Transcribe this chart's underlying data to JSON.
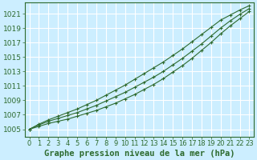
{
  "title": "",
  "xlabel": "Graphe pression niveau de la mer (hPa)",
  "ylabel": "",
  "bg_color": "#cceeff",
  "grid_color": "#ffffff",
  "line_color": "#2d6a2d",
  "marker": "+",
  "x_values": [
    0,
    1,
    2,
    3,
    4,
    5,
    6,
    7,
    8,
    9,
    10,
    11,
    12,
    13,
    14,
    15,
    16,
    17,
    18,
    19,
    20,
    21,
    22,
    23
  ],
  "y_main": [
    1005.0,
    1005.6,
    1006.1,
    1006.5,
    1006.9,
    1007.3,
    1007.8,
    1008.3,
    1008.9,
    1009.5,
    1010.1,
    1010.8,
    1011.5,
    1012.2,
    1013.0,
    1013.9,
    1014.8,
    1015.8,
    1016.8,
    1017.9,
    1019.0,
    1020.0,
    1020.9,
    1021.7
  ],
  "y_upper": [
    1005.0,
    1005.7,
    1006.3,
    1006.8,
    1007.3,
    1007.8,
    1008.4,
    1009.0,
    1009.7,
    1010.4,
    1011.1,
    1011.9,
    1012.7,
    1013.5,
    1014.3,
    1015.2,
    1016.1,
    1017.1,
    1018.1,
    1019.1,
    1020.1,
    1020.8,
    1021.5,
    1022.1
  ],
  "y_lower": [
    1005.0,
    1005.4,
    1005.8,
    1006.1,
    1006.4,
    1006.8,
    1007.2,
    1007.6,
    1008.1,
    1008.6,
    1009.2,
    1009.8,
    1010.5,
    1011.2,
    1012.0,
    1012.9,
    1013.8,
    1014.8,
    1015.9,
    1017.0,
    1018.2,
    1019.3,
    1020.3,
    1021.3
  ],
  "ylim": [
    1004.0,
    1022.5
  ],
  "yticks": [
    1005,
    1007,
    1009,
    1011,
    1013,
    1015,
    1017,
    1019,
    1021
  ],
  "xlim": [
    -0.5,
    23.5
  ],
  "xticks": [
    0,
    1,
    2,
    3,
    4,
    5,
    6,
    7,
    8,
    9,
    10,
    11,
    12,
    13,
    14,
    15,
    16,
    17,
    18,
    19,
    20,
    21,
    22,
    23
  ],
  "xlabel_fontsize": 7.5,
  "ytick_fontsize": 6.5,
  "xtick_fontsize": 6.0,
  "line_width": 0.8,
  "marker_size": 3,
  "marker_edge_width": 0.8
}
